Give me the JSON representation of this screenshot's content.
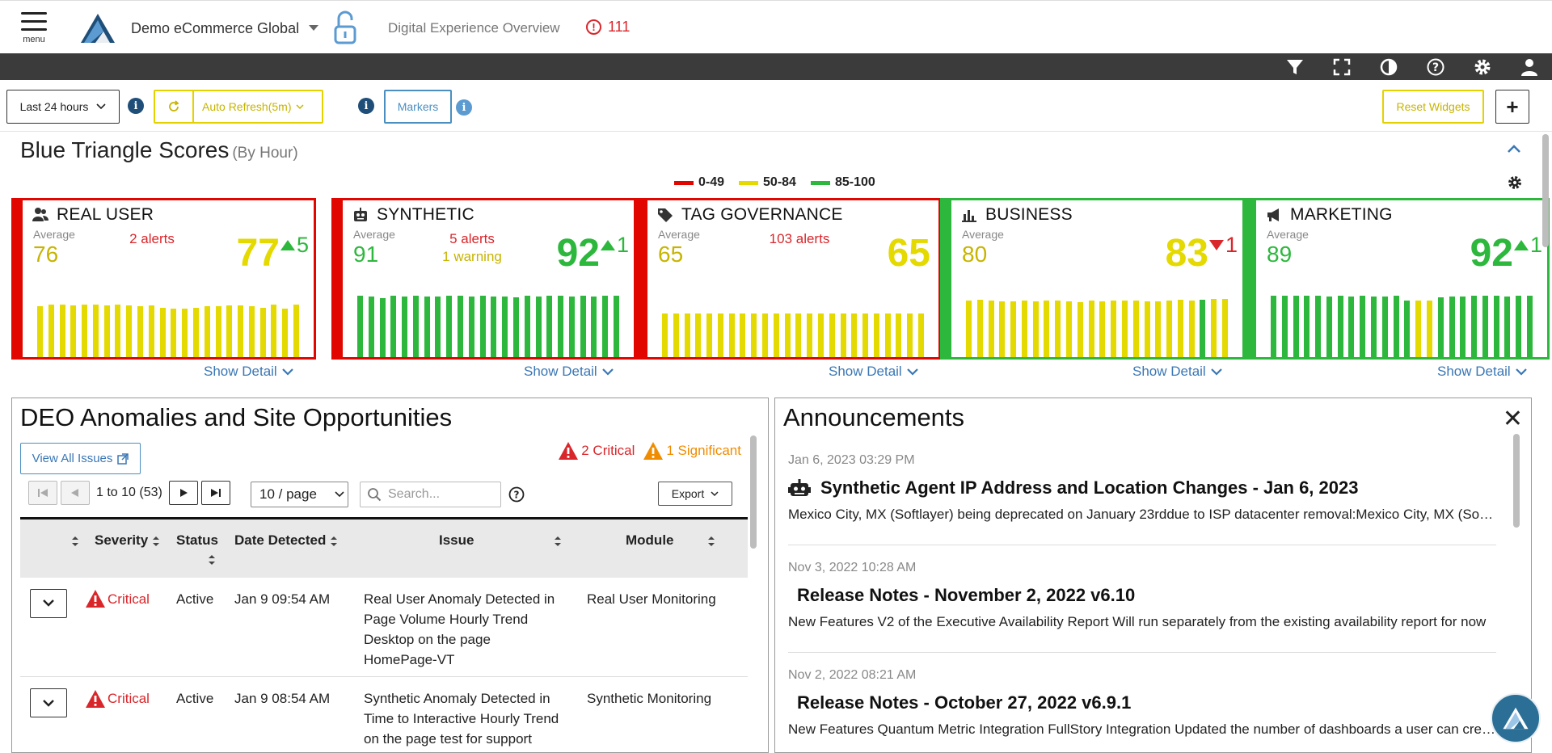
{
  "header": {
    "menu_label": "menu",
    "site_name": "Demo eCommerce Global",
    "page_name": "Digital Experience Overview",
    "alert_count": "111"
  },
  "toolbar": {
    "time_range": "Last 24 hours",
    "auto_refresh": "Auto Refresh(5m)",
    "markers": "Markers",
    "reset_widgets": "Reset Widgets",
    "add": "+"
  },
  "scores": {
    "title": "Blue Triangle Scores",
    "subtitle": "(By Hour)",
    "legend": [
      {
        "label": "0-49",
        "color": "#e10600"
      },
      {
        "label": "50-84",
        "color": "#e4d900"
      },
      {
        "label": "85-100",
        "color": "#2db83d"
      }
    ],
    "show_detail": "Show Detail",
    "average_label": "Average",
    "cards": [
      {
        "name": "REAL USER",
        "icon": "users-icon",
        "avg": "76",
        "alerts": "2 alerts",
        "warning": "",
        "score": "77",
        "delta": "5",
        "dir": "up",
        "border": "#e10600",
        "avgColor": "#c7b400",
        "scoreColor": "#e4d900",
        "bars": [
          0.63,
          0.65,
          0.65,
          0.64,
          0.65,
          0.65,
          0.64,
          0.65,
          0.64,
          0.63,
          0.64,
          0.61,
          0.6,
          0.6,
          0.61,
          0.63,
          0.63,
          0.64,
          0.64,
          0.63,
          0.61,
          0.65,
          0.6,
          0.65
        ],
        "barColors": [
          "y",
          "y",
          "y",
          "y",
          "y",
          "y",
          "y",
          "y",
          "y",
          "y",
          "y",
          "y",
          "y",
          "y",
          "y",
          "y",
          "y",
          "y",
          "y",
          "y",
          "y",
          "y",
          "y",
          "y"
        ]
      },
      {
        "name": "SYNTHETIC",
        "icon": "robot-icon",
        "avg": "91",
        "alerts": "5 alerts",
        "warning": "1 warning",
        "score": "92",
        "delta": "1",
        "dir": "up",
        "border": "#e10600",
        "avgColor": "#2db83d",
        "scoreColor": "#2db83d",
        "bars": [
          0.76,
          0.75,
          0.73,
          0.76,
          0.75,
          0.76,
          0.75,
          0.75,
          0.76,
          0.76,
          0.75,
          0.76,
          0.75,
          0.75,
          0.74,
          0.76,
          0.75,
          0.76,
          0.76,
          0.75,
          0.76,
          0.75,
          0.76,
          0.76
        ],
        "barColors": [
          "g",
          "g",
          "g",
          "g",
          "g",
          "g",
          "g",
          "g",
          "g",
          "g",
          "g",
          "g",
          "g",
          "g",
          "g",
          "g",
          "g",
          "g",
          "g",
          "g",
          "g",
          "g",
          "g",
          "g"
        ]
      },
      {
        "name": "TAG GOVERNANCE",
        "icon": "tag-icon",
        "avg": "65",
        "alerts": "103 alerts",
        "warning": "",
        "score": "65",
        "delta": "",
        "dir": "",
        "border": "#e10600",
        "avgColor": "#c7b400",
        "scoreColor": "#e4d900",
        "bars": [
          0.54,
          0.54,
          0.54,
          0.54,
          0.54,
          0.54,
          0.54,
          0.54,
          0.54,
          0.54,
          0.54,
          0.54,
          0.54,
          0.54,
          0.54,
          0.54,
          0.54,
          0.54,
          0.54,
          0.54,
          0.54,
          0.54,
          0.54,
          0.54
        ],
        "barColors": [
          "y",
          "y",
          "y",
          "y",
          "y",
          "y",
          "y",
          "y",
          "y",
          "y",
          "y",
          "y",
          "y",
          "y",
          "y",
          "y",
          "y",
          "y",
          "y",
          "y",
          "y",
          "y",
          "y",
          "y"
        ]
      },
      {
        "name": "BUSINESS",
        "icon": "bar-chart-icon",
        "avg": "80",
        "alerts": "",
        "warning": "",
        "score": "83",
        "delta": "1",
        "dir": "down",
        "border": "#2db83d",
        "avgColor": "#c7b400",
        "scoreColor": "#e4d900",
        "bars": [
          0.7,
          0.71,
          0.7,
          0.69,
          0.69,
          0.7,
          0.69,
          0.7,
          0.7,
          0.69,
          0.68,
          0.7,
          0.69,
          0.7,
          0.7,
          0.7,
          0.69,
          0.69,
          0.7,
          0.71,
          0.7,
          0.71,
          0.72,
          0.72
        ],
        "barColors": [
          "y",
          "y",
          "y",
          "y",
          "y",
          "y",
          "y",
          "y",
          "y",
          "y",
          "y",
          "y",
          "y",
          "y",
          "y",
          "y",
          "y",
          "y",
          "y",
          "y",
          "y",
          "g",
          "y",
          "y"
        ]
      },
      {
        "name": "MARKETING",
        "icon": "megaphone-icon",
        "avg": "89",
        "alerts": "",
        "warning": "",
        "score": "92",
        "delta": "1",
        "dir": "up",
        "border": "#2db83d",
        "avgColor": "#2db83d",
        "scoreColor": "#2db83d",
        "bars": [
          0.76,
          0.76,
          0.76,
          0.76,
          0.76,
          0.75,
          0.76,
          0.75,
          0.76,
          0.75,
          0.75,
          0.76,
          0.7,
          0.7,
          0.7,
          0.74,
          0.75,
          0.75,
          0.76,
          0.76,
          0.76,
          0.75,
          0.76,
          0.76
        ],
        "barColors": [
          "g",
          "g",
          "g",
          "g",
          "g",
          "g",
          "g",
          "g",
          "g",
          "g",
          "g",
          "g",
          "g",
          "y",
          "y",
          "g",
          "g",
          "g",
          "g",
          "g",
          "g",
          "g",
          "g",
          "g"
        ]
      }
    ]
  },
  "anomalies": {
    "title": "DEO Anomalies and Site Opportunities",
    "view_all": "View All Issues",
    "critical_summary": "2 Critical",
    "significant_summary": "1 Significant",
    "page_info": "1 to 10 (53)",
    "page_size": "10 / page",
    "search_placeholder": "Search...",
    "export": "Export",
    "columns": [
      "Severity",
      "Status",
      "Date Detected",
      "Issue",
      "Module"
    ],
    "rows": [
      {
        "severity": "Critical",
        "status": "Active",
        "date": "Jan 9 09:54 AM",
        "issue": "Real User Anomaly Detected in Page Volume Hourly Trend Desktop on the page HomePage-VT",
        "module": "Real User Monitoring"
      },
      {
        "severity": "Critical",
        "status": "Active",
        "date": "Jan 9 08:54 AM",
        "issue": "Synthetic Anomaly Detected in Time to Interactive Hourly Trend on the page test for support",
        "module": "Synthetic Monitoring"
      }
    ]
  },
  "announcements": {
    "title": "Announcements",
    "items": [
      {
        "date": "Jan 6, 2023 03:29 PM",
        "title": "Synthetic Agent IP Address and Location Changes - Jan 6, 2023",
        "body": "Mexico City, MX (Softlayer) being deprecated on January 23rddue to ISP datacenter removal:Mexico City, MX (Softlayer) (Lines)",
        "icon": "robot-icon"
      },
      {
        "date": "Nov 3, 2022 10:28 AM",
        "title": "Release Notes - November 2, 2022 v6.10",
        "body": "New Features V2 of the Executive Availability Report Will run separately from the existing availability report for now",
        "icon": ""
      },
      {
        "date": "Nov 2, 2022 08:21 AM",
        "title": "Release Notes - October 27, 2022 v6.9.1",
        "body": "New Features Quantum Metric Integration FullStory Integration Updated the number of dashboards a user can create",
        "icon": ""
      }
    ]
  }
}
